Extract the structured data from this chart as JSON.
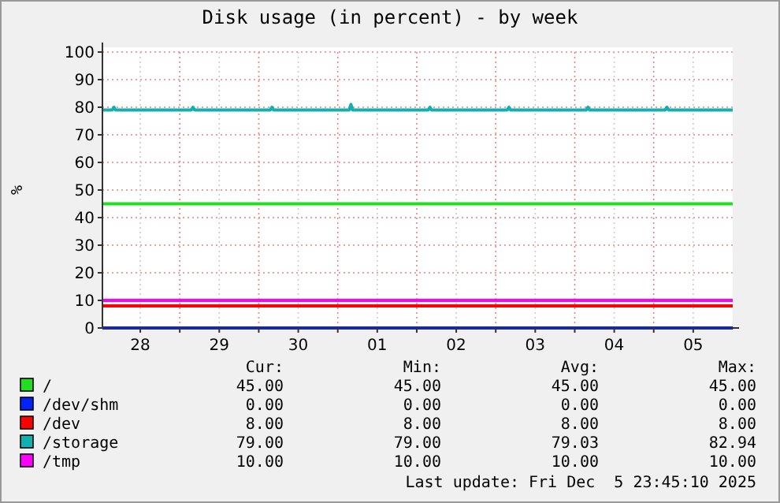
{
  "chart_data": {
    "type": "line",
    "title": "Disk usage (in percent) - by week",
    "ylabel": "%",
    "xlim": [
      "2025-11-28T00:30",
      "2025-12-06T00:00"
    ],
    "xticks": [
      {
        "value": "2025-11-28T12:00",
        "label": "28"
      },
      {
        "value": "2025-11-29T00:00",
        "label": null
      },
      {
        "value": "2025-11-29T12:00",
        "label": "29"
      },
      {
        "value": "2025-11-30T00:00",
        "label": null
      },
      {
        "value": "2025-11-30T12:00",
        "label": "30"
      },
      {
        "value": "2025-12-01T00:00",
        "label": null
      },
      {
        "value": "2025-12-01T12:00",
        "label": "01"
      },
      {
        "value": "2025-12-02T00:00",
        "label": null
      },
      {
        "value": "2025-12-02T12:00",
        "label": "02"
      },
      {
        "value": "2025-12-03T00:00",
        "label": null
      },
      {
        "value": "2025-12-03T12:00",
        "label": "03"
      },
      {
        "value": "2025-12-04T00:00",
        "label": null
      },
      {
        "value": "2025-12-04T12:00",
        "label": "04"
      },
      {
        "value": "2025-12-05T00:00",
        "label": null
      },
      {
        "value": "2025-12-05T12:00",
        "label": "05"
      }
    ],
    "ylim": [
      0,
      100
    ],
    "yticks": [
      0,
      10,
      20,
      30,
      40,
      50,
      60,
      70,
      80,
      90,
      100
    ],
    "grid": true,
    "legend": "bottom",
    "line_style": "solid",
    "series": [
      {
        "name": "/",
        "color": "#22dd22",
        "x": [
          "2025-11-28T00:30",
          "2025-12-06T00:00"
        ],
        "values": [
          45,
          45
        ]
      },
      {
        "name": "/dev/shm",
        "color": "#0022ff",
        "x": [
          "2025-11-28T00:30",
          "2025-12-06T00:00"
        ],
        "values": [
          0,
          0
        ]
      },
      {
        "name": "/dev",
        "color": "#ff0000",
        "x": [
          "2025-11-28T00:30",
          "2025-12-06T00:00"
        ],
        "values": [
          8,
          8
        ]
      },
      {
        "name": "/storage",
        "color": "#12b0b0",
        "x": [
          "2025-11-28T00:30",
          "2025-11-28T03:30",
          "2025-11-28T04:00",
          "2025-11-28T04:30",
          "2025-11-29T03:30",
          "2025-11-29T04:00",
          "2025-11-29T04:30",
          "2025-11-30T03:30",
          "2025-11-30T04:00",
          "2025-11-30T04:30",
          "2025-12-01T03:30",
          "2025-12-01T04:00",
          "2025-12-01T04:30",
          "2025-12-02T03:30",
          "2025-12-02T04:00",
          "2025-12-02T04:30",
          "2025-12-03T03:30",
          "2025-12-03T04:00",
          "2025-12-03T04:30",
          "2025-12-04T03:30",
          "2025-12-04T04:00",
          "2025-12-04T04:30",
          "2025-12-05T03:30",
          "2025-12-05T04:00",
          "2025-12-05T04:30",
          "2025-12-06T00:00"
        ],
        "values": [
          79,
          79,
          80,
          79,
          79,
          80,
          79,
          79,
          80,
          79,
          79,
          81,
          79,
          79,
          80,
          79,
          79,
          80,
          79,
          79,
          80,
          79,
          79,
          80,
          79,
          79
        ]
      },
      {
        "name": "/tmp",
        "color": "#ff00ff",
        "x": [
          "2025-11-28T00:30",
          "2025-12-06T00:00"
        ],
        "values": [
          10,
          10
        ]
      }
    ],
    "annotations": [
      "Cur:",
      "Min:",
      "Avg:",
      "Max:",
      "45.00",
      "45.00",
      "45.00",
      "45.00",
      "0.00",
      "0.00",
      "0.00",
      "0.00",
      "8.00",
      "8.00",
      "8.00",
      "8.00",
      "79.00",
      "79.00",
      "79.03",
      "82.94",
      "10.00",
      "10.00",
      "10.00",
      "10.00",
      "Last update: Fri Dec  5 23:45:10 2025"
    ]
  }
}
